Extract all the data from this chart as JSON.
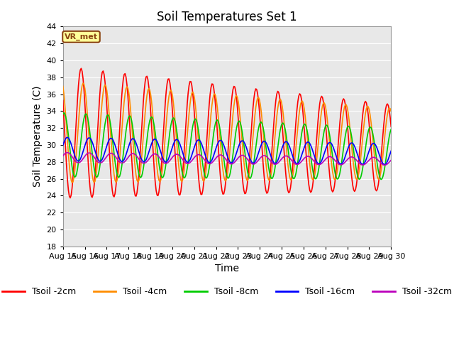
{
  "title": "Soil Temperatures Set 1",
  "xlabel": "Time",
  "ylabel": "Soil Temperature (C)",
  "ylim": [
    18,
    44
  ],
  "xlim": [
    0,
    15
  ],
  "xtick_labels": [
    "Aug 15",
    "Aug 16",
    "Aug 17",
    "Aug 18",
    "Aug 19",
    "Aug 20",
    "Aug 21",
    "Aug 22",
    "Aug 23",
    "Aug 24",
    "Aug 25",
    "Aug 26",
    "Aug 27",
    "Aug 28",
    "Aug 29",
    "Aug 30"
  ],
  "line_colors": [
    "#FF0000",
    "#FF8C00",
    "#00CC00",
    "#0000FF",
    "#BB00BB"
  ],
  "line_labels": [
    "Tsoil -2cm",
    "Tsoil -4cm",
    "Tsoil -8cm",
    "Tsoil -16cm",
    "Tsoil -32cm"
  ],
  "bg_color": "#FFFFFF",
  "plot_bg_color": "#DCDCDC",
  "band_light_color": "#E8E8E8",
  "band_dark_color": "#CCCCCC",
  "grid_line_color": "#FFFFFF",
  "vr_met_label": "VR_met",
  "vr_met_bg": "#FFFF99",
  "vr_met_border": "#8B4513",
  "title_fontsize": 12,
  "axis_label_fontsize": 10,
  "tick_fontsize": 8,
  "legend_fontsize": 9
}
